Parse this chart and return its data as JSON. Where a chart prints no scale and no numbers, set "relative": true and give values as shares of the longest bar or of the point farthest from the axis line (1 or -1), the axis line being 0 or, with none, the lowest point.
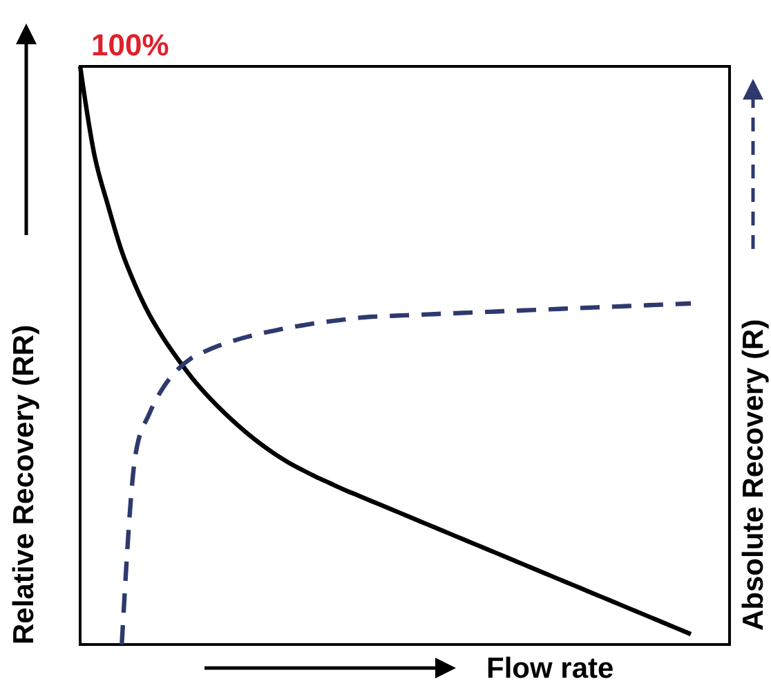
{
  "chart_data": {
    "type": "line",
    "relative": true,
    "xlabel": "Flow rate",
    "ylabel": "Relative Recovery (RR)",
    "y2label": "Absolute Recovery (R)",
    "categories": [
      null,
      null,
      null,
      null,
      null,
      null,
      null,
      null,
      null,
      null,
      null,
      null,
      null,
      null,
      null,
      null,
      null,
      null,
      null,
      null,
      null,
      null,
      null,
      null,
      null,
      null,
      null,
      null,
      null,
      null,
      null,
      null,
      null,
      null,
      null,
      null,
      null,
      null,
      null,
      null,
      null,
      null,
      null,
      null,
      null
    ],
    "series": [
      {
        "color": "#000000",
        "line_style": "solid",
        "values": [
          1.0,
          0.85,
          0.76,
          0.68,
          0.62,
          0.57,
          0.53,
          0.495,
          0.463,
          0.435,
          0.41,
          0.387,
          0.366,
          0.347,
          0.33,
          0.315,
          0.302,
          0.29,
          0.279,
          0.268,
          0.258,
          0.248,
          0.238,
          0.228,
          0.218,
          0.208,
          0.198,
          0.188,
          0.178,
          0.168,
          0.158,
          0.148,
          0.138,
          0.128,
          0.118,
          0.108,
          0.098,
          0.088,
          0.078,
          0.068,
          0.058,
          0.048,
          0.038,
          0.028,
          0.018
        ]
      },
      {
        "color": "#2e3a6e",
        "line_style": "dashed",
        "values": [
          null,
          null,
          null,
          0.0,
          0.33,
          0.4,
          0.445,
          0.475,
          0.495,
          0.507,
          0.517,
          0.525,
          0.532,
          0.538,
          0.543,
          0.548,
          0.552,
          0.556,
          0.559,
          0.562,
          0.565,
          0.567,
          0.568,
          0.569,
          0.57,
          0.571,
          0.572,
          0.573,
          0.574,
          0.575,
          0.576,
          0.577,
          0.578,
          0.579,
          0.58,
          0.581,
          0.582,
          0.583,
          0.584,
          0.585,
          0.586,
          0.587,
          0.588,
          0.589,
          0.59
        ]
      }
    ],
    "annotations": [
      "100%"
    ]
  }
}
